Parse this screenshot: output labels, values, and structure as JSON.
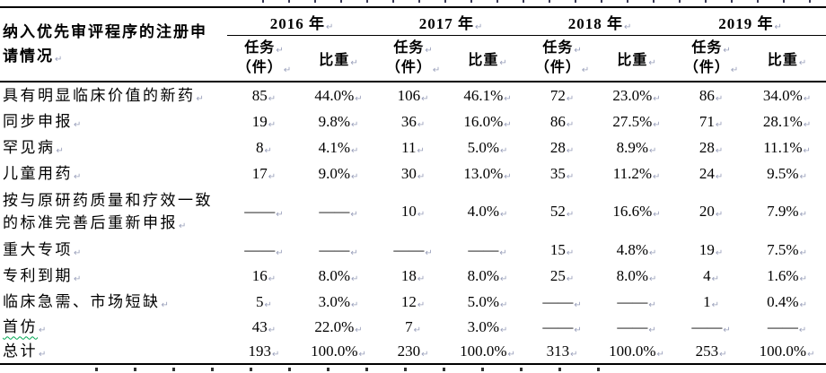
{
  "table": {
    "row_header_title": "纳入优先审评程序的注册申请情况",
    "col_group_headers": [
      "2016 年",
      "2017 年",
      "2018 年",
      "2019 年"
    ],
    "sub_headers": {
      "tasks_line1": "任务",
      "tasks_line2": "（件）",
      "share": "比重"
    },
    "rows": [
      {
        "label": "具有明显临床价值的新药",
        "values": [
          "85",
          "44.0%",
          "106",
          "46.1%",
          "72",
          "23.0%",
          "86",
          "34.0%"
        ]
      },
      {
        "label": "同步申报",
        "values": [
          "19",
          "9.8%",
          "36",
          "16.0%",
          "86",
          "27.5%",
          "71",
          "28.1%"
        ]
      },
      {
        "label": "罕见病",
        "values": [
          "8",
          "4.1%",
          "11",
          "5.0%",
          "28",
          "8.9%",
          "28",
          "11.1%"
        ]
      },
      {
        "label": "儿童用药",
        "values": [
          "17",
          "9.0%",
          "30",
          "13.0%",
          "35",
          "11.2%",
          "24",
          "9.5%"
        ]
      },
      {
        "label": "按与原研药质量和疗效一致的标准完善后重新申报",
        "values": [
          "——",
          "——",
          "10",
          "4.0%",
          "52",
          "16.6%",
          "20",
          "7.9%"
        ]
      },
      {
        "label": "重大专项",
        "values": [
          "——",
          "——",
          "——",
          "——",
          "15",
          "4.8%",
          "19",
          "7.5%"
        ]
      },
      {
        "label": "专利到期",
        "values": [
          "16",
          "8.0%",
          "18",
          "8.0%",
          "25",
          "8.0%",
          "4",
          "1.6%"
        ]
      },
      {
        "label": "临床急需、市场短缺",
        "values": [
          "5",
          "3.0%",
          "12",
          "5.0%",
          "——",
          "——",
          "1",
          "0.4%"
        ]
      },
      {
        "label": "首仿",
        "values": [
          "43",
          "22.0%",
          "7",
          "3.0%",
          "——",
          "——",
          "——",
          "——"
        ],
        "spellcheck_underline": true
      },
      {
        "label": "总计",
        "values": [
          "193",
          "100.0%",
          "230",
          "100.0%",
          "313",
          "100.0%",
          "253",
          "100.0%"
        ]
      }
    ]
  },
  "eol_mark": "↵",
  "colors": {
    "text": "#000000",
    "border": "#000000",
    "eol_mark": "#9aa0bb",
    "spellcheck_underline": "#00a651",
    "background": "#ffffff"
  }
}
